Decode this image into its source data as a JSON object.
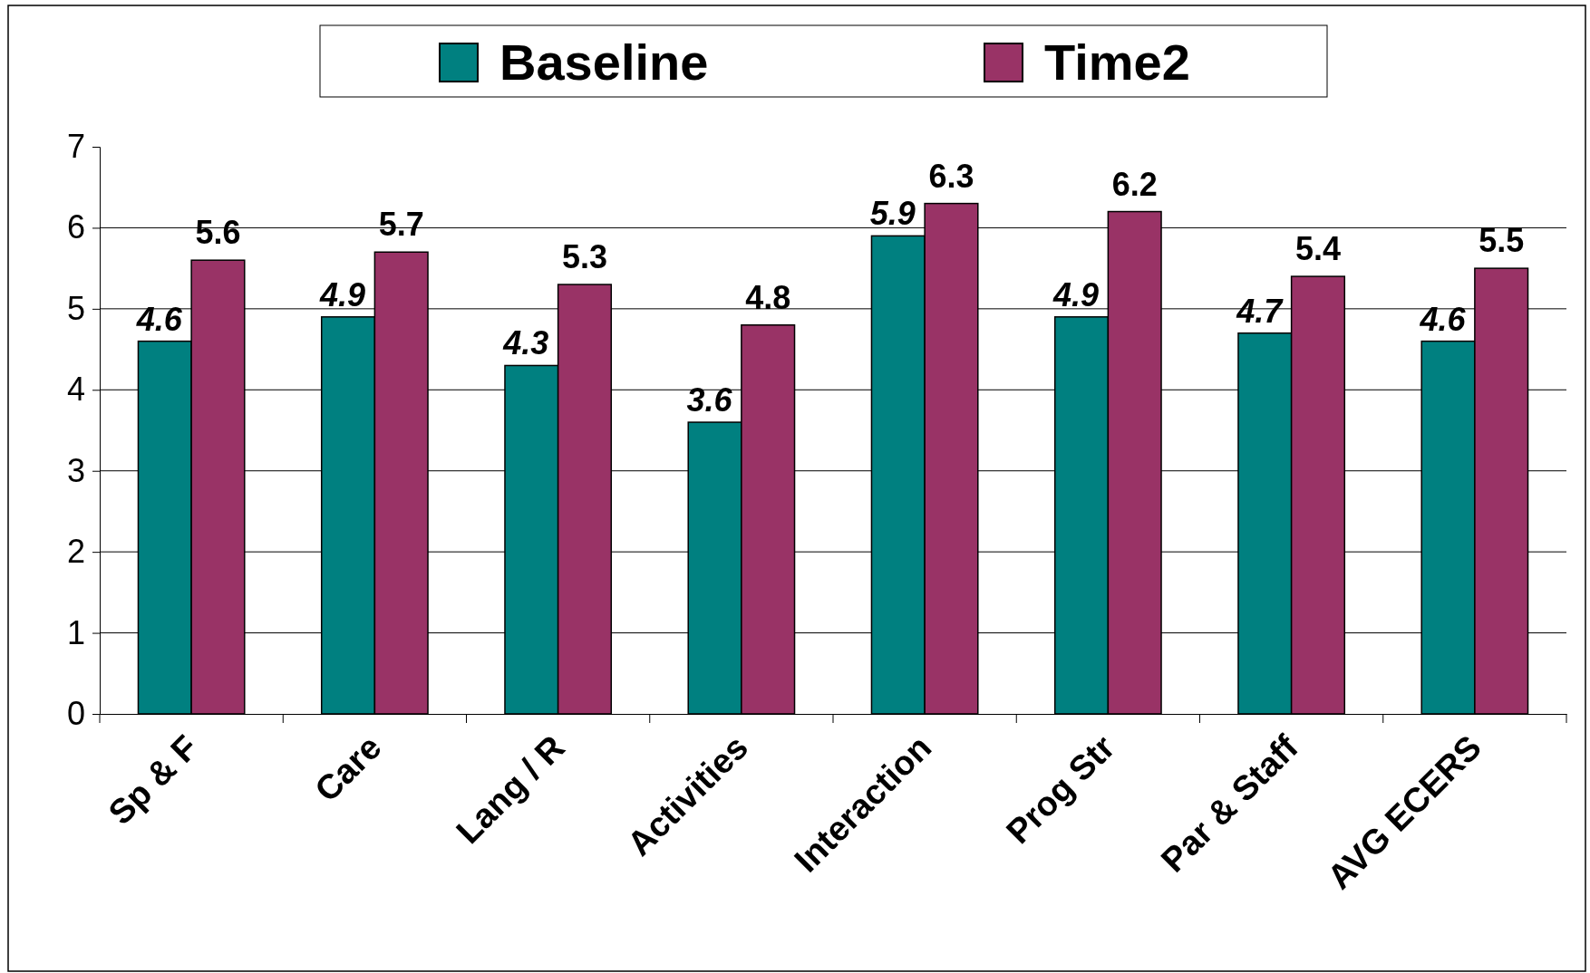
{
  "chart_data": {
    "type": "bar",
    "categories": [
      "Sp & F",
      "Care",
      "Lang / R",
      "Activities",
      "Interaction",
      "Prog Str",
      "Par & Staff",
      "AVG ECERS"
    ],
    "series": [
      {
        "name": "Baseline",
        "color": "#008080",
        "values": [
          4.6,
          4.9,
          4.3,
          3.6,
          5.9,
          4.9,
          4.7,
          4.6
        ]
      },
      {
        "name": "Time2",
        "color": "#993366",
        "values": [
          5.6,
          5.7,
          5.3,
          4.8,
          6.3,
          6.2,
          5.4,
          5.5
        ]
      }
    ],
    "ylim": [
      0,
      7
    ],
    "yticks": [
      0,
      1,
      2,
      3,
      4,
      5,
      6,
      7
    ],
    "grid": "y",
    "legend": "top",
    "data_labels": true
  }
}
